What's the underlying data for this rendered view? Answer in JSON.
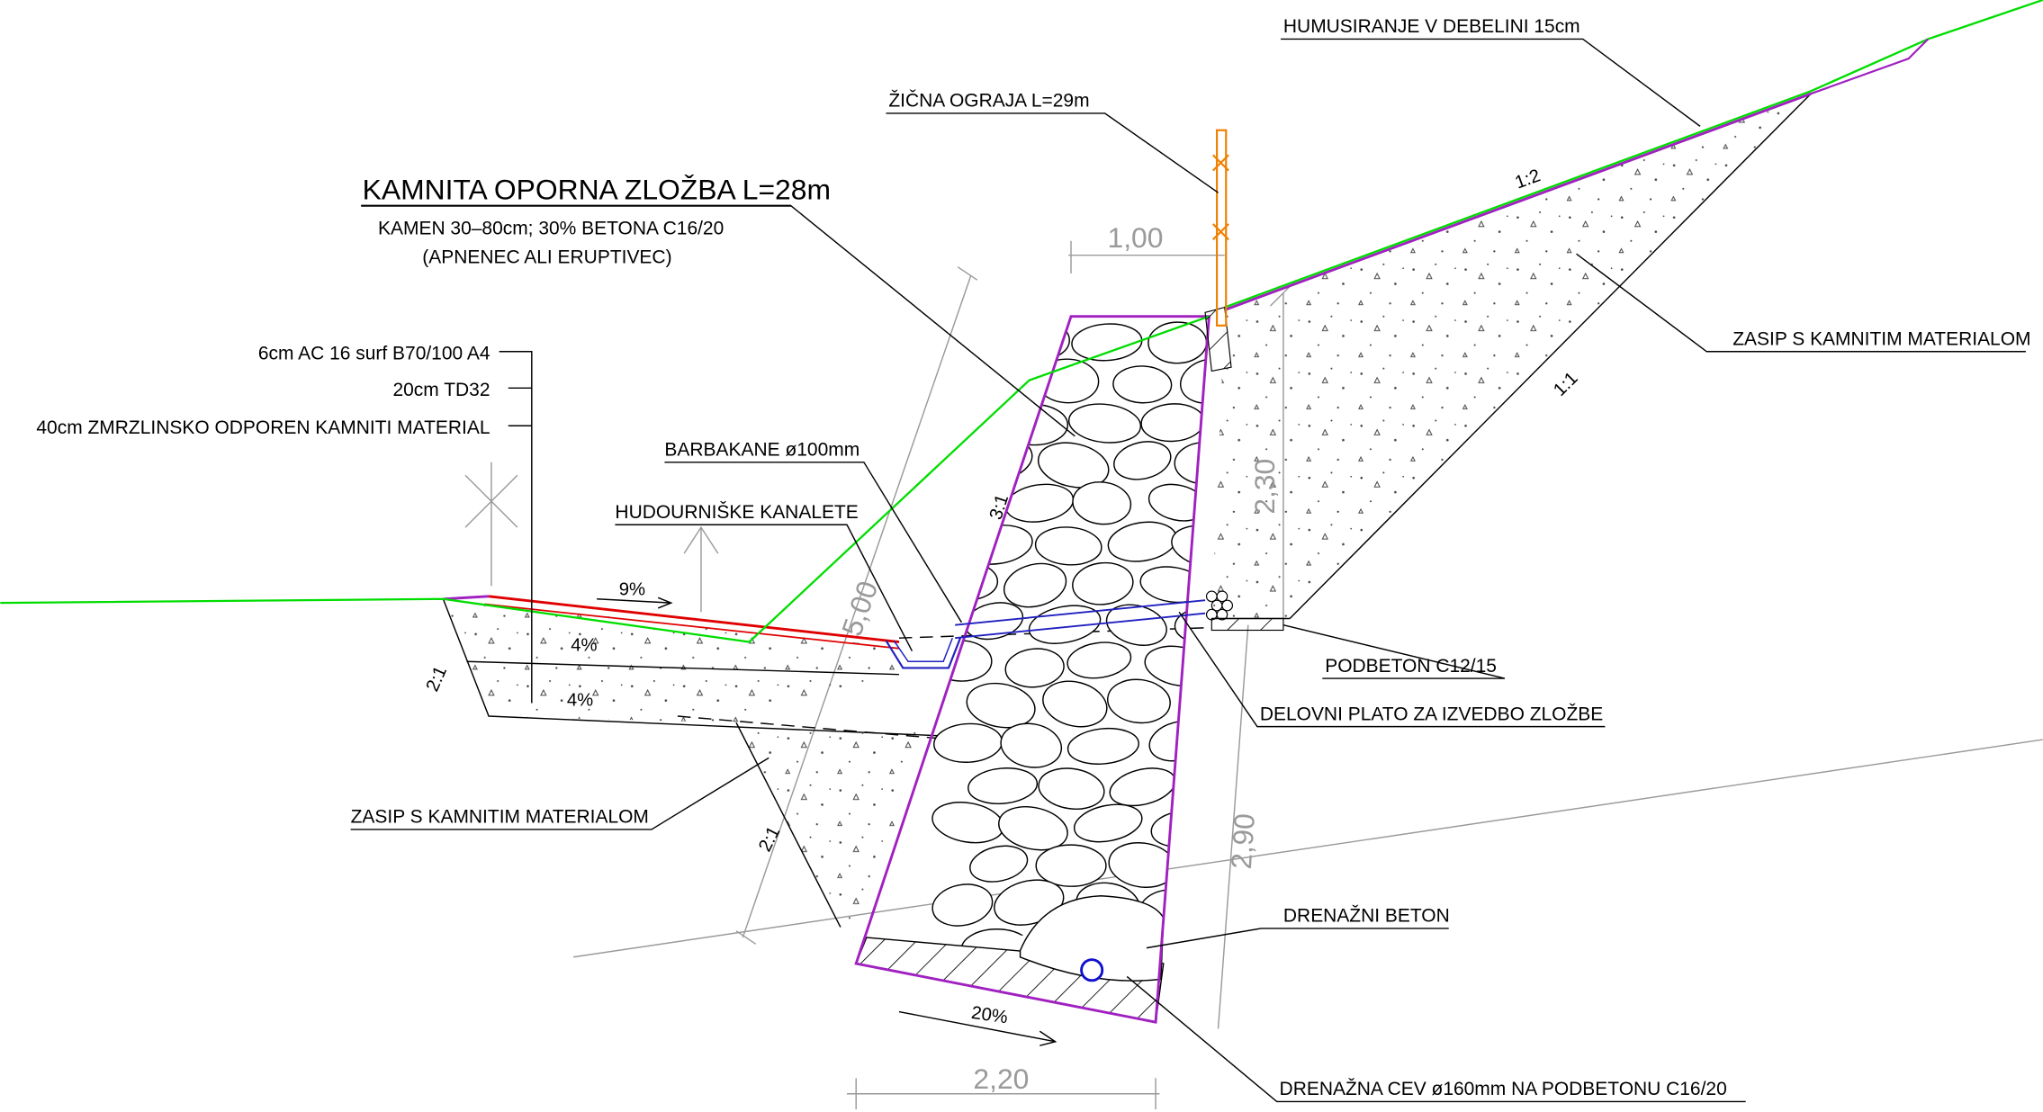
{
  "labels": {
    "humus": "HUMUSIRANJE V DEBELINI 15cm",
    "fence": "ŽIČNA OGRAJA L=29m",
    "wall_title": "KAMNITA OPORNA ZLOŽBA L=28m",
    "wall_sub1": "KAMEN 30–80cm; 30% BETONA C16/20",
    "wall_sub2": "(APNENEC ALI ERUPTIVEC)",
    "layer1": "6cm AC 16 surf B70/100 A4",
    "layer2": "20cm TD32",
    "layer3": "40cm ZMRZLINSKO ODPOREN KAMNITI MATERIAL",
    "weep": "BARBAKANE ø100mm",
    "channel": "HUDOURNIŠKE KANALETE",
    "fill_right": "ZASIP S KAMNITIM MATERIALOM",
    "lean_concrete": "PODBETON C12/15",
    "work_plateau": "DELOVNI PLATO ZA IZVEDBO ZLOŽBE",
    "fill_left": "ZASIP S KAMNITIM MATERIALOM",
    "drain_concrete": "DRENAŽNI BETON",
    "drain_pipe": "DRENAŽNA CEV ø160mm NA PODBETONU C16/20"
  },
  "dimensions": {
    "top": "1,00",
    "right_upper": "2,30",
    "wall_height": "5,00",
    "right_lower": "2,90",
    "base": "2,20"
  },
  "slopes": {
    "upper_slope": "1:2",
    "fill_slope": "1:1",
    "wall_face": "3:1",
    "road_edge": "2:1",
    "fill_left": "2:1",
    "road_top": "9%",
    "layer_a": "4%",
    "layer_b": "4%",
    "base": "20%"
  }
}
